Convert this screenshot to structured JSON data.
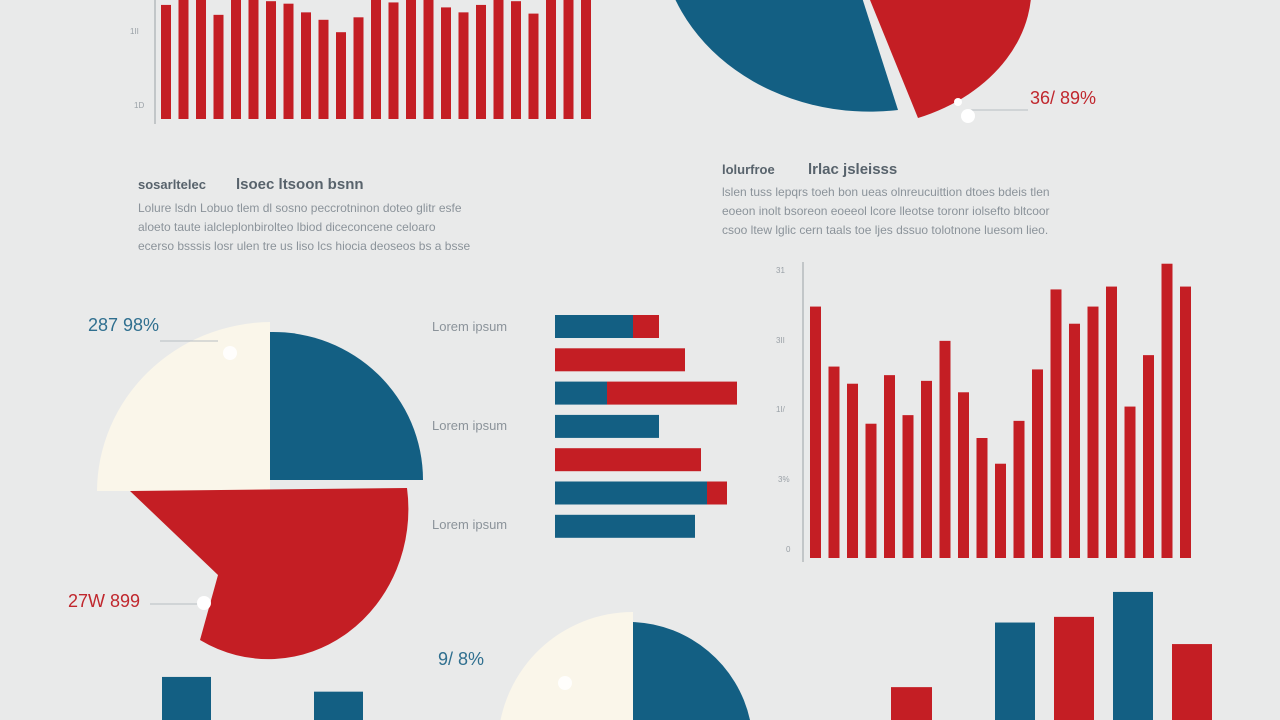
{
  "colors": {
    "background": "#e9eaea",
    "red": "#c41e24",
    "blue": "#135f83",
    "cream": "#faf6ea",
    "axis": "#9aa1a7",
    "text": "#8b939a"
  },
  "text_blocks": [
    {
      "heading1": "sosarltelec",
      "heading2": "lsoec ltsoon bsnn",
      "lines": [
        "Lolure lsdn    Lobuo tlem  dl sosno peccrotninon doteo glitr  esfe",
        "aloeto taute   ialcleplonbirolteo lbiod diceconcene  celoaro",
        "ecerso bsssis  losr ulen tre us liso lcs hiocia deoseos bs a bsse"
      ]
    },
    {
      "heading1": "lolurfroe",
      "heading2": "lrlac jsleisss",
      "lines": [
        "lslen tuss    lepqrs toeh bon ueas olnreucuittion dtoes bdeis tlen",
        "eoeon inolt   bsoreon eoeeol lcore lleotse toronr iolsefto bltcoor",
        "csoo ltew     lglic cern taals toe ljes dssuo tolotnone luesom lieo."
      ]
    }
  ],
  "percent_labels": [
    {
      "text": "36/  89%"
    },
    {
      "text": "287  98%"
    },
    {
      "text": "27W  899"
    },
    {
      "text": "9/  8%"
    }
  ],
  "chart_data": [
    {
      "type": "bar",
      "title": "",
      "series": [
        {
          "values": [
            92,
            100,
            98,
            84,
            96,
            100,
            95,
            93,
            86,
            80,
            70,
            82,
            97,
            94,
            98,
            100,
            90,
            86,
            92,
            100,
            95,
            85,
            98,
            100,
            98
          ]
        }
      ],
      "ylim": [
        0,
        100
      ],
      "ytick_labels": [
        "1D",
        "1II"
      ]
    },
    {
      "type": "pie",
      "title": "",
      "slices": [
        {
          "label": "blue",
          "value": 48,
          "color": "#135f83"
        },
        {
          "label": "red",
          "value": 27,
          "color": "#c41e24"
        }
      ]
    },
    {
      "type": "pie",
      "title": "",
      "slices": [
        {
          "label": "cream",
          "value": 25,
          "color": "#faf6ea"
        },
        {
          "label": "blue",
          "value": 25,
          "color": "#135f83"
        },
        {
          "label": "red",
          "value": 50,
          "color": "#c41e24"
        }
      ]
    },
    {
      "type": "bar",
      "orientation": "horizontal",
      "title": "",
      "category_labels": [
        "Lorem ipsum",
        "Lorem ipsum",
        "Lorem ipsum"
      ],
      "bars": [
        {
          "blue": 78,
          "red": 26
        },
        {
          "blue": 0,
          "red": 130
        },
        {
          "blue": 52,
          "red": 130
        },
        {
          "blue": 104,
          "red": 0
        },
        {
          "blue": 0,
          "red": 146
        },
        {
          "blue": 152,
          "red": 20
        },
        {
          "blue": 140,
          "red": 0
        }
      ],
      "xlim": [
        0,
        190
      ]
    },
    {
      "type": "bar",
      "title": "",
      "series": [
        {
          "values": [
            88,
            67,
            61,
            47,
            64,
            50,
            62,
            76,
            58,
            42,
            33,
            48,
            66,
            94,
            82,
            88,
            95,
            53,
            71,
            103,
            95
          ]
        }
      ],
      "ylim": [
        0,
        105
      ],
      "ytick_labels": [
        "31",
        "3II",
        "1I/",
        "3%",
        "0"
      ]
    },
    {
      "type": "pie",
      "title": "",
      "slices": [
        {
          "label": "cream",
          "value": 50,
          "color": "#faf6ea"
        },
        {
          "label": "blue",
          "value": 50,
          "color": "#135f83"
        }
      ]
    },
    {
      "type": "bar",
      "title": "",
      "series": [
        {
          "values": [
            38,
            0,
            25,
            0,
            0,
            0,
            0,
            0,
            0,
            0,
            0,
            0,
            0,
            0,
            0,
            0,
            29,
            0,
            86,
            0,
            91,
            0,
            113,
            0,
            67
          ]
        }
      ],
      "colors": [
        "#135f83",
        "#135f83",
        "#c41e24",
        "#135f83",
        "#c41e24",
        "#135f83",
        "#c41e24"
      ],
      "ylim": [
        0,
        120
      ]
    }
  ]
}
